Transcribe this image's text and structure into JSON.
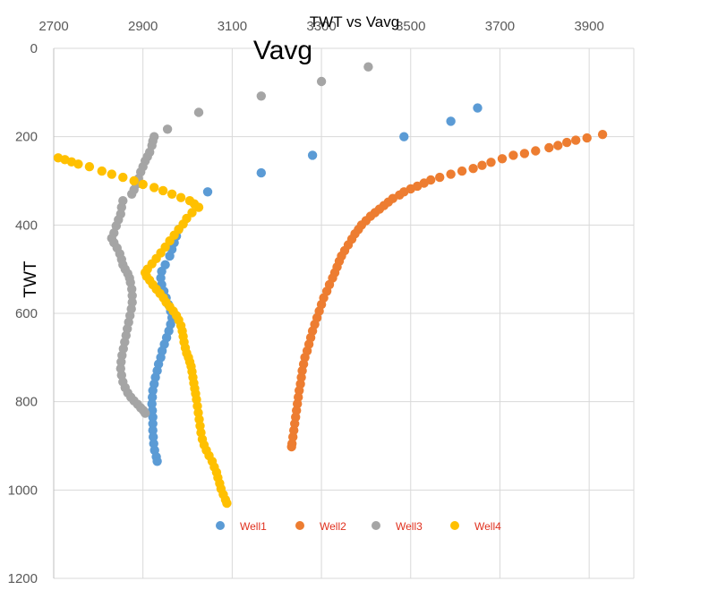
{
  "chart_data": {
    "type": "scatter",
    "title": "TWT vs Vavg",
    "subtitle": "Vavg",
    "xlabel": "",
    "ylabel": "TWT",
    "xlim": [
      2700,
      4000
    ],
    "ylim": [
      0,
      1200
    ],
    "y_inverted": true,
    "x_ticks": [
      2700,
      2900,
      3100,
      3300,
      3500,
      3700,
      3900
    ],
    "y_ticks": [
      0,
      200,
      400,
      600,
      800,
      1000,
      1200
    ],
    "grid": true,
    "legend": "bottom",
    "series": [
      {
        "name": "Well1",
        "color": "#5b9bd5",
        "points": [
          [
            3650,
            135
          ],
          [
            3590,
            165
          ],
          [
            3485,
            200
          ],
          [
            3280,
            242
          ],
          [
            3165,
            282
          ],
          [
            3045,
            325
          ],
          [
            2980,
            410
          ],
          [
            2975,
            425
          ],
          [
            2970,
            440
          ],
          [
            2965,
            455
          ],
          [
            2960,
            470
          ],
          [
            2950,
            490
          ],
          [
            2942,
            505
          ],
          [
            2940,
            520
          ],
          [
            2942,
            535
          ],
          [
            2947,
            550
          ],
          [
            2952,
            565
          ],
          [
            2957,
            580
          ],
          [
            2962,
            595
          ],
          [
            2965,
            610
          ],
          [
            2962,
            625
          ],
          [
            2958,
            640
          ],
          [
            2953,
            655
          ],
          [
            2948,
            670
          ],
          [
            2943,
            685
          ],
          [
            2940,
            700
          ],
          [
            2935,
            715
          ],
          [
            2932,
            730
          ],
          [
            2928,
            745
          ],
          [
            2925,
            760
          ],
          [
            2922,
            775
          ],
          [
            2921,
            790
          ],
          [
            2920,
            805
          ],
          [
            2921,
            820
          ],
          [
            2922,
            835
          ],
          [
            2922,
            850
          ],
          [
            2922,
            865
          ],
          [
            2923,
            880
          ],
          [
            2924,
            895
          ],
          [
            2926,
            910
          ],
          [
            2930,
            925
          ],
          [
            2932,
            935
          ]
        ]
      },
      {
        "name": "Well2",
        "color": "#ed7d31",
        "points": [
          [
            3930,
            195
          ],
          [
            3895,
            203
          ],
          [
            3870,
            208
          ],
          [
            3850,
            213
          ],
          [
            3830,
            220
          ],
          [
            3810,
            225
          ],
          [
            3780,
            232
          ],
          [
            3755,
            238
          ],
          [
            3730,
            242
          ],
          [
            3705,
            250
          ],
          [
            3680,
            258
          ],
          [
            3660,
            265
          ],
          [
            3640,
            272
          ],
          [
            3615,
            278
          ],
          [
            3590,
            285
          ],
          [
            3565,
            292
          ],
          [
            3545,
            298
          ],
          [
            3530,
            305
          ],
          [
            3515,
            312
          ],
          [
            3500,
            318
          ],
          [
            3485,
            325
          ],
          [
            3475,
            332
          ],
          [
            3460,
            340
          ],
          [
            3450,
            348
          ],
          [
            3440,
            356
          ],
          [
            3430,
            364
          ],
          [
            3420,
            372
          ],
          [
            3410,
            380
          ],
          [
            3400,
            390
          ],
          [
            3390,
            400
          ],
          [
            3383,
            410
          ],
          [
            3375,
            420
          ],
          [
            3368,
            432
          ],
          [
            3360,
            445
          ],
          [
            3352,
            458
          ],
          [
            3345,
            470
          ],
          [
            3340,
            482
          ],
          [
            3335,
            495
          ],
          [
            3330,
            508
          ],
          [
            3325,
            520
          ],
          [
            3318,
            535
          ],
          [
            3312,
            550
          ],
          [
            3305,
            565
          ],
          [
            3300,
            580
          ],
          [
            3295,
            595
          ],
          [
            3290,
            610
          ],
          [
            3285,
            625
          ],
          [
            3280,
            640
          ],
          [
            3276,
            655
          ],
          [
            3272,
            670
          ],
          [
            3268,
            685
          ],
          [
            3263,
            700
          ],
          [
            3260,
            715
          ],
          [
            3257,
            730
          ],
          [
            3255,
            745
          ],
          [
            3253,
            760
          ],
          [
            3250,
            775
          ],
          [
            3248,
            790
          ],
          [
            3246,
            805
          ],
          [
            3244,
            820
          ],
          [
            3242,
            835
          ],
          [
            3240,
            850
          ],
          [
            3238,
            865
          ],
          [
            3236,
            880
          ],
          [
            3234,
            895
          ],
          [
            3233,
            902
          ]
        ]
      },
      {
        "name": "Well3",
        "color": "#a5a5a5",
        "points": [
          [
            3405,
            42
          ],
          [
            3300,
            75
          ],
          [
            3165,
            108
          ],
          [
            3025,
            145
          ],
          [
            2955,
            183
          ],
          [
            2925,
            200
          ],
          [
            2922,
            210
          ],
          [
            2920,
            220
          ],
          [
            2915,
            235
          ],
          [
            2910,
            245
          ],
          [
            2905,
            255
          ],
          [
            2900,
            268
          ],
          [
            2895,
            280
          ],
          [
            2890,
            295
          ],
          [
            2885,
            308
          ],
          [
            2880,
            320
          ],
          [
            2875,
            330
          ],
          [
            2855,
            345
          ],
          [
            2852,
            360
          ],
          [
            2850,
            375
          ],
          [
            2845,
            388
          ],
          [
            2840,
            402
          ],
          [
            2835,
            418
          ],
          [
            2830,
            430
          ],
          [
            2835,
            440
          ],
          [
            2842,
            452
          ],
          [
            2848,
            465
          ],
          [
            2852,
            478
          ],
          [
            2855,
            490
          ],
          [
            2860,
            500
          ],
          [
            2866,
            510
          ],
          [
            2870,
            520
          ],
          [
            2872,
            530
          ],
          [
            2875,
            545
          ],
          [
            2876,
            560
          ],
          [
            2876,
            575
          ],
          [
            2874,
            590
          ],
          [
            2871,
            605
          ],
          [
            2868,
            620
          ],
          [
            2865,
            635
          ],
          [
            2862,
            650
          ],
          [
            2859,
            665
          ],
          [
            2856,
            680
          ],
          [
            2853,
            695
          ],
          [
            2851,
            710
          ],
          [
            2850,
            725
          ],
          [
            2852,
            740
          ],
          [
            2855,
            755
          ],
          [
            2860,
            768
          ],
          [
            2866,
            780
          ],
          [
            2873,
            790
          ],
          [
            2880,
            798
          ],
          [
            2888,
            806
          ],
          [
            2895,
            814
          ],
          [
            2901,
            820
          ],
          [
            2905,
            826
          ]
        ]
      },
      {
        "name": "Well4",
        "color": "#ffc000",
        "points": [
          [
            2710,
            248
          ],
          [
            2725,
            252
          ],
          [
            2740,
            257
          ],
          [
            2755,
            262
          ],
          [
            2780,
            268
          ],
          [
            2808,
            278
          ],
          [
            2830,
            285
          ],
          [
            2855,
            292
          ],
          [
            2880,
            300
          ],
          [
            2900,
            308
          ],
          [
            2925,
            315
          ],
          [
            2945,
            322
          ],
          [
            2965,
            330
          ],
          [
            2985,
            338
          ],
          [
            3005,
            345
          ],
          [
            3015,
            352
          ],
          [
            3025,
            360
          ],
          [
            3010,
            372
          ],
          [
            2998,
            385
          ],
          [
            2990,
            398
          ],
          [
            2980,
            410
          ],
          [
            2970,
            423
          ],
          [
            2960,
            436
          ],
          [
            2950,
            450
          ],
          [
            2940,
            463
          ],
          [
            2930,
            476
          ],
          [
            2920,
            488
          ],
          [
            2910,
            500
          ],
          [
            2905,
            508
          ],
          [
            2908,
            516
          ],
          [
            2915,
            525
          ],
          [
            2922,
            535
          ],
          [
            2930,
            545
          ],
          [
            2938,
            555
          ],
          [
            2946,
            565
          ],
          [
            2952,
            575
          ],
          [
            2960,
            585
          ],
          [
            2968,
            595
          ],
          [
            2975,
            605
          ],
          [
            2980,
            615
          ],
          [
            2985,
            628
          ],
          [
            2988,
            640
          ],
          [
            2990,
            652
          ],
          [
            2992,
            665
          ],
          [
            2995,
            678
          ],
          [
            2998,
            690
          ],
          [
            3002,
            700
          ],
          [
            3005,
            710
          ],
          [
            3008,
            720
          ],
          [
            3010,
            732
          ],
          [
            3012,
            745
          ],
          [
            3014,
            758
          ],
          [
            3016,
            770
          ],
          [
            3018,
            782
          ],
          [
            3020,
            795
          ],
          [
            3022,
            810
          ],
          [
            3024,
            825
          ],
          [
            3026,
            840
          ],
          [
            3028,
            855
          ],
          [
            3030,
            870
          ],
          [
            3033,
            885
          ],
          [
            3037,
            898
          ],
          [
            3042,
            910
          ],
          [
            3048,
            922
          ],
          [
            3055,
            935
          ],
          [
            3060,
            948
          ],
          [
            3065,
            960
          ],
          [
            3068,
            972
          ],
          [
            3072,
            985
          ],
          [
            3075,
            997
          ],
          [
            3080,
            1010
          ],
          [
            3085,
            1022
          ],
          [
            3088,
            1030
          ]
        ]
      }
    ]
  }
}
